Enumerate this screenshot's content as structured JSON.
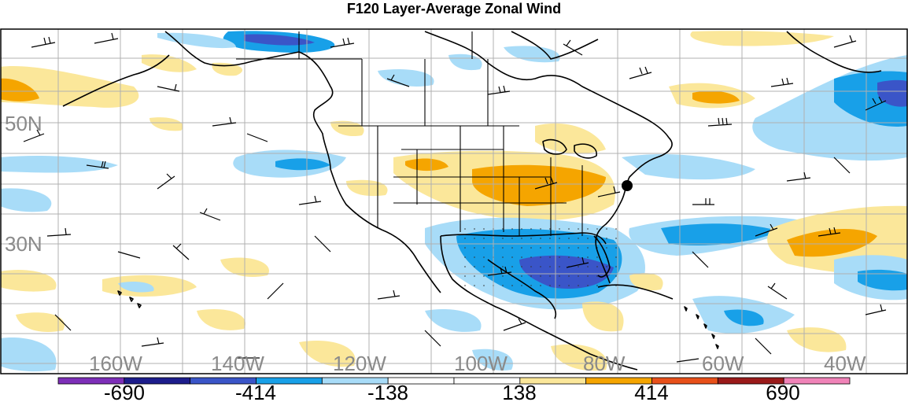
{
  "title": "F120 Layer-Average Zonal Wind",
  "map": {
    "variable": "Layer-Average Zonal Wind",
    "forecast_hour": "F120",
    "latitude_labels": [
      "50N",
      "30N"
    ],
    "longitude_labels": [
      "160W",
      "140W",
      "120W",
      "100W",
      "80W",
      "60W",
      "40W"
    ]
  },
  "colorbar": {
    "labels": [
      "-690",
      "-414",
      "-138",
      "138",
      "414",
      "690"
    ],
    "colors": [
      "#7d2fb8",
      "#1d1d8c",
      "#3a55c8",
      "#18a0e8",
      "#a8dcf8",
      "#ffffff",
      "#ffffff",
      "#fbe79a",
      "#f5a500",
      "#e8501a",
      "#9a1a1a",
      "#f083b8"
    ]
  },
  "colors": {
    "negative_light": "#a8dcf8",
    "negative_mid": "#18a0e8",
    "negative_strong": "#3a55c8",
    "positive_light": "#fbe79a",
    "positive_mid": "#f5a500",
    "grid": "#b0b0b0",
    "coast": "#000000"
  }
}
